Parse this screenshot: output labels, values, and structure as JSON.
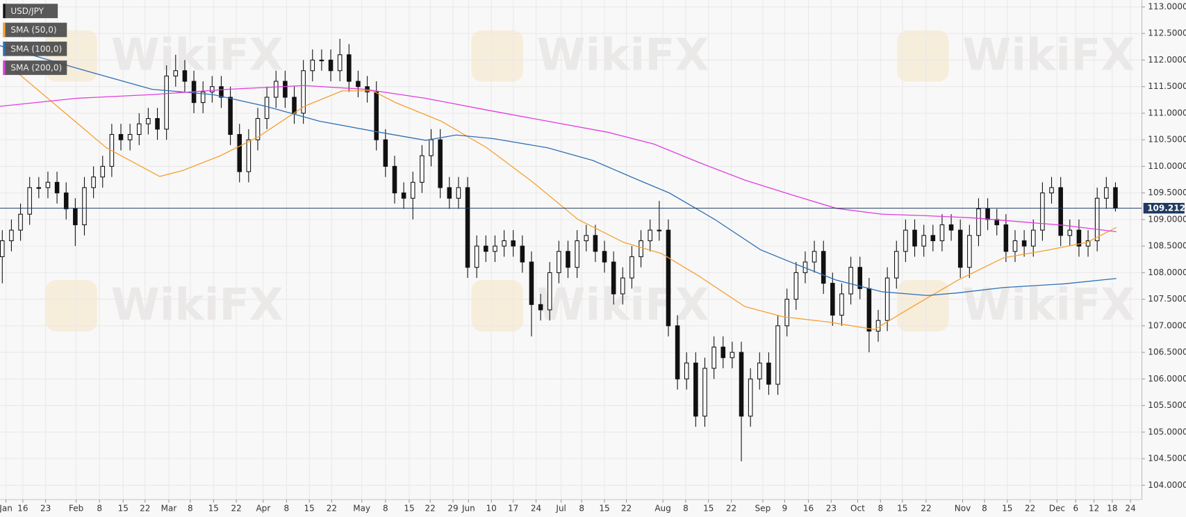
{
  "chart_data": {
    "type": "candlestick",
    "name": "USD/JPY",
    "color": "#111111",
    "watermark": "WikiFX",
    "last_price": 109.2125,
    "last_price_color": "#1f3a5f",
    "grid": true,
    "xlim": [
      0,
      250.3
    ],
    "ylim": [
      103.73,
      113.13
    ],
    "x": [
      0.5,
      2.5,
      4.5,
      6.5,
      8.5,
      10.5,
      12.5,
      14.5,
      16.5,
      18.5,
      20.5,
      22.5,
      24.5,
      26.5,
      28.5,
      30.5,
      32.5,
      34.5,
      36.5,
      38.5,
      40.5,
      42.5,
      44.5,
      46.5,
      48.5,
      50.5,
      52.5,
      54.5,
      56.5,
      58.5,
      60.5,
      62.5,
      64.5,
      66.5,
      68.5,
      70.5,
      72.5,
      74.5,
      76.5,
      78.5,
      80.5,
      82.5,
      84.5,
      86.5,
      88.5,
      90.5,
      92.5,
      94.5,
      96.5,
      98.5,
      100.5,
      102.5,
      104.5,
      106.5,
      108.5,
      110.5,
      112.5,
      114.5,
      116.5,
      118.5,
      120.5,
      122.5,
      124.5,
      126.5,
      128.5,
      130.5,
      132.5,
      134.5,
      136.5,
      138.5,
      140.5,
      142.5,
      144.5,
      146.5,
      148.5,
      150.5,
      152.5,
      154.5,
      156.5,
      158.5,
      160.5,
      162.5,
      164.5,
      166.5,
      168.5,
      170.5,
      172.5,
      174.5,
      176.5,
      178.5,
      180.5,
      182.5,
      184.5,
      186.5,
      188.5,
      190.5,
      192.5,
      194.5,
      196.5,
      198.5,
      200.5,
      202.5,
      204.5,
      206.5,
      208.5,
      210.5,
      212.5,
      214.5,
      216.5,
      218.5,
      220.5,
      222.5,
      224.5,
      226.5,
      228.5,
      230.5,
      232.5,
      234.5,
      236.5,
      238.5,
      240.5,
      242.5,
      244.5
    ],
    "open": [
      108.3,
      108.6,
      108.8,
      109.1,
      109.6,
      109.6,
      109.7,
      109.5,
      109.2,
      108.9,
      109.6,
      109.8,
      110.0,
      110.6,
      110.5,
      110.6,
      110.8,
      110.9,
      110.7,
      111.7,
      111.8,
      111.6,
      111.2,
      111.4,
      111.5,
      111.3,
      110.6,
      109.9,
      110.5,
      110.9,
      111.3,
      111.6,
      111.3,
      111.0,
      111.8,
      112.0,
      112.0,
      111.8,
      112.1,
      111.6,
      111.5,
      111.4,
      110.5,
      110.0,
      109.5,
      109.4,
      109.7,
      110.2,
      110.5,
      109.6,
      109.4,
      109.6,
      108.1,
      108.5,
      108.4,
      108.5,
      108.6,
      108.5,
      108.2,
      107.4,
      107.3,
      108.0,
      108.4,
      108.1,
      108.6,
      108.7,
      108.4,
      108.2,
      107.6,
      107.9,
      108.3,
      108.6,
      108.8,
      108.8,
      107.0,
      106.0,
      106.3,
      105.3,
      106.2,
      106.6,
      106.4,
      106.5,
      105.3,
      106.0,
      106.3,
      105.9,
      107.0,
      107.5,
      108.0,
      108.2,
      108.4,
      107.8,
      107.2,
      107.6,
      108.1,
      107.7,
      106.9,
      107.1,
      107.9,
      108.4,
      108.8,
      108.5,
      108.7,
      108.6,
      108.9,
      108.8,
      108.1,
      108.7,
      109.2,
      109.0,
      108.9,
      108.4,
      108.6,
      108.5,
      108.8,
      109.5,
      109.6,
      108.7,
      108.8,
      108.5,
      108.6,
      109.4,
      109.6
    ],
    "high": [
      108.8,
      109.0,
      109.3,
      109.8,
      109.8,
      109.9,
      109.9,
      109.7,
      109.4,
      109.8,
      110.0,
      110.2,
      110.8,
      110.8,
      110.8,
      111.0,
      111.1,
      111.1,
      111.9,
      112.1,
      112.0,
      111.8,
      111.6,
      111.7,
      111.7,
      111.5,
      110.8,
      110.7,
      111.1,
      111.5,
      111.8,
      111.8,
      111.5,
      112.0,
      112.2,
      112.2,
      112.2,
      112.4,
      112.3,
      111.8,
      111.7,
      111.6,
      110.7,
      110.2,
      109.7,
      109.9,
      110.4,
      110.7,
      110.7,
      109.8,
      109.8,
      109.8,
      108.7,
      108.7,
      108.7,
      108.8,
      108.8,
      108.7,
      108.4,
      107.6,
      108.2,
      108.6,
      108.6,
      108.8,
      108.9,
      108.9,
      108.6,
      108.4,
      108.1,
      108.5,
      108.8,
      109.0,
      109.35,
      109.0,
      107.2,
      106.5,
      106.5,
      106.4,
      106.8,
      106.8,
      106.7,
      106.7,
      106.2,
      106.5,
      106.5,
      107.2,
      107.7,
      108.2,
      108.4,
      108.6,
      108.6,
      108.0,
      107.8,
      108.3,
      108.3,
      107.9,
      107.3,
      108.1,
      108.6,
      109.0,
      109.0,
      108.9,
      108.9,
      109.1,
      109.1,
      109.0,
      108.9,
      109.4,
      109.4,
      109.2,
      109.1,
      108.8,
      108.8,
      109.0,
      109.7,
      109.8,
      109.8,
      109.0,
      109.0,
      108.8,
      109.6,
      109.8,
      109.7
    ],
    "low": [
      107.8,
      108.4,
      108.6,
      108.9,
      109.4,
      109.4,
      109.3,
      109.0,
      108.5,
      108.7,
      109.4,
      109.6,
      109.8,
      110.3,
      110.3,
      110.4,
      110.6,
      110.5,
      110.5,
      111.5,
      111.4,
      111.0,
      111.0,
      111.2,
      111.1,
      110.4,
      109.7,
      109.7,
      110.3,
      110.7,
      111.1,
      111.1,
      110.8,
      110.8,
      111.6,
      111.8,
      111.6,
      111.6,
      111.4,
      111.3,
      111.2,
      110.3,
      109.8,
      109.3,
      109.2,
      109.0,
      109.5,
      110.0,
      109.4,
      109.2,
      109.2,
      107.9,
      107.9,
      108.2,
      108.2,
      108.3,
      108.3,
      108.0,
      106.8,
      107.1,
      107.1,
      107.8,
      107.9,
      107.9,
      108.4,
      108.2,
      108.0,
      107.4,
      107.4,
      107.7,
      108.1,
      108.4,
      108.6,
      106.8,
      105.8,
      105.8,
      105.1,
      105.1,
      106.0,
      106.2,
      106.2,
      104.45,
      105.1,
      105.8,
      105.7,
      105.7,
      106.8,
      107.3,
      107.8,
      108.0,
      107.6,
      107.0,
      107.0,
      107.4,
      107.5,
      106.5,
      106.7,
      106.9,
      107.7,
      108.2,
      108.3,
      108.3,
      108.4,
      108.4,
      108.6,
      107.9,
      107.9,
      108.5,
      108.8,
      108.7,
      108.2,
      108.2,
      108.3,
      108.3,
      108.6,
      109.3,
      108.5,
      108.5,
      108.3,
      108.3,
      108.4,
      109.2,
      109.15
    ],
    "close": [
      108.6,
      108.8,
      109.1,
      109.6,
      109.6,
      109.7,
      109.5,
      109.2,
      108.9,
      109.6,
      109.8,
      110.0,
      110.6,
      110.5,
      110.6,
      110.8,
      110.9,
      110.7,
      111.7,
      111.8,
      111.6,
      111.2,
      111.4,
      111.5,
      111.3,
      110.6,
      109.9,
      110.5,
      110.9,
      111.3,
      111.6,
      111.3,
      111.0,
      111.8,
      112.0,
      112.0,
      111.8,
      112.1,
      111.6,
      111.5,
      111.4,
      110.5,
      110.0,
      109.5,
      109.4,
      109.7,
      110.2,
      110.5,
      109.6,
      109.4,
      109.6,
      108.1,
      108.5,
      108.4,
      108.5,
      108.6,
      108.5,
      108.2,
      107.4,
      107.3,
      108.0,
      108.4,
      108.1,
      108.6,
      108.7,
      108.4,
      108.2,
      107.6,
      107.9,
      108.3,
      108.6,
      108.8,
      108.8,
      107.0,
      106.0,
      106.3,
      105.3,
      106.2,
      106.6,
      106.4,
      106.5,
      105.3,
      106.0,
      106.3,
      105.9,
      107.0,
      107.5,
      108.0,
      108.2,
      108.4,
      107.8,
      107.2,
      107.6,
      108.1,
      107.7,
      106.9,
      107.1,
      107.9,
      108.4,
      108.8,
      108.5,
      108.7,
      108.6,
      108.9,
      108.8,
      108.1,
      108.7,
      109.2,
      109.0,
      108.9,
      108.4,
      108.6,
      108.5,
      108.8,
      109.5,
      109.6,
      108.7,
      108.8,
      108.5,
      108.6,
      109.4,
      109.6,
      109.2125
    ],
    "series": [
      {
        "name": "SMA (50,0)",
        "color": "#f5a030",
        "x": [
          3.3,
          23.3,
          35,
          40,
          48.3,
          56.7,
          66.7,
          75,
          81.7,
          86.7,
          96.7,
          106.7,
          116.7,
          126.7,
          136.7,
          145,
          153.3,
          163.3,
          171.7,
          181.7,
          191.7,
          200,
          210,
          220,
          230,
          238.3,
          244.7
        ],
        "values": [
          111.8,
          110.35,
          109.81,
          109.92,
          110.2,
          110.56,
          111.13,
          111.42,
          111.42,
          111.2,
          110.85,
          110.35,
          109.71,
          109.0,
          108.57,
          108.36,
          107.93,
          107.36,
          107.17,
          107.07,
          106.93,
          107.36,
          107.86,
          108.28,
          108.43,
          108.57,
          108.85
        ]
      },
      {
        "name": "SMA (100,0)",
        "color": "#2f6fb5",
        "x": [
          0,
          16.7,
          33.3,
          46.7,
          58.3,
          70,
          83.3,
          93.3,
          100,
          108.3,
          120,
          130,
          140,
          146.7,
          156.7,
          166.7,
          175,
          183.3,
          193.3,
          203.3,
          210,
          220,
          233.3,
          244.7
        ],
        "values": [
          112.27,
          111.85,
          111.45,
          111.35,
          111.13,
          110.85,
          110.64,
          110.49,
          110.59,
          110.52,
          110.35,
          110.11,
          109.74,
          109.5,
          109.0,
          108.43,
          108.14,
          107.86,
          107.64,
          107.57,
          107.62,
          107.72,
          107.79,
          107.89
        ]
      },
      {
        "name": "SMA (200,0)",
        "color": "#e03ce0",
        "x": [
          0,
          16.7,
          33.3,
          50,
          66.7,
          80,
          93.3,
          106.7,
          120,
          133.3,
          143.3,
          153.3,
          163.3,
          173.3,
          183.3,
          193.3,
          203.3,
          213.3,
          223.3,
          233.3,
          244.7
        ],
        "values": [
          111.13,
          111.28,
          111.35,
          111.45,
          111.52,
          111.45,
          111.28,
          111.06,
          110.85,
          110.64,
          110.42,
          110.07,
          109.74,
          109.47,
          109.21,
          109.1,
          109.07,
          109.03,
          108.96,
          108.89,
          108.77
        ]
      }
    ],
    "xticks": [
      {
        "value": 1.3,
        "label": "Jan"
      },
      {
        "value": 5,
        "label": "16"
      },
      {
        "value": 10,
        "label": "23"
      },
      {
        "value": 16.7,
        "label": "Feb"
      },
      {
        "value": 21.8,
        "label": "8"
      },
      {
        "value": 27,
        "label": "15"
      },
      {
        "value": 31.8,
        "label": "22"
      },
      {
        "value": 37,
        "label": "Mar"
      },
      {
        "value": 41.7,
        "label": "8"
      },
      {
        "value": 46.8,
        "label": "15"
      },
      {
        "value": 51.8,
        "label": "22"
      },
      {
        "value": 57.7,
        "label": "Apr"
      },
      {
        "value": 62.8,
        "label": "8"
      },
      {
        "value": 67.8,
        "label": "15"
      },
      {
        "value": 72.7,
        "label": "22"
      },
      {
        "value": 79.3,
        "label": "May"
      },
      {
        "value": 84.5,
        "label": "8"
      },
      {
        "value": 89.7,
        "label": "15"
      },
      {
        "value": 94.3,
        "label": "22"
      },
      {
        "value": 99.3,
        "label": "29"
      },
      {
        "value": 102.7,
        "label": "Jun"
      },
      {
        "value": 107.7,
        "label": "10"
      },
      {
        "value": 112.5,
        "label": "17"
      },
      {
        "value": 117.5,
        "label": "24"
      },
      {
        "value": 123,
        "label": "Jul"
      },
      {
        "value": 127.5,
        "label": "8"
      },
      {
        "value": 132.5,
        "label": "15"
      },
      {
        "value": 137.3,
        "label": "22"
      },
      {
        "value": 145.3,
        "label": "Aug"
      },
      {
        "value": 150.3,
        "label": "8"
      },
      {
        "value": 155.3,
        "label": "15"
      },
      {
        "value": 160.3,
        "label": "22"
      },
      {
        "value": 167.2,
        "label": "Sep"
      },
      {
        "value": 172,
        "label": "9"
      },
      {
        "value": 177.2,
        "label": "16"
      },
      {
        "value": 182.2,
        "label": "23"
      },
      {
        "value": 188,
        "label": "Oct"
      },
      {
        "value": 193,
        "label": "8"
      },
      {
        "value": 197.8,
        "label": "15"
      },
      {
        "value": 203,
        "label": "22"
      },
      {
        "value": 211,
        "label": "Nov"
      },
      {
        "value": 215.8,
        "label": "8"
      },
      {
        "value": 220.8,
        "label": "15"
      },
      {
        "value": 225.8,
        "label": "22"
      },
      {
        "value": 231.7,
        "label": "Dec"
      },
      {
        "value": 235.8,
        "label": "6"
      },
      {
        "value": 239.8,
        "label": "12"
      },
      {
        "value": 243.8,
        "label": "18"
      },
      {
        "value": 247.8,
        "label": "24"
      }
    ],
    "yticks": [
      {
        "value": 104,
        "label": "104.0000"
      },
      {
        "value": 104.5,
        "label": "104.5000"
      },
      {
        "value": 105,
        "label": "105.0000"
      },
      {
        "value": 105.5,
        "label": "105.5000"
      },
      {
        "value": 106,
        "label": "106.0000"
      },
      {
        "value": 106.5,
        "label": "106.5000"
      },
      {
        "value": 107,
        "label": "107.0000"
      },
      {
        "value": 107.5,
        "label": "107.5000"
      },
      {
        "value": 108,
        "label": "108.0000"
      },
      {
        "value": 108.5,
        "label": "108.5000"
      },
      {
        "value": 109,
        "label": "109.0000"
      },
      {
        "value": 109.5,
        "label": "109.5000"
      },
      {
        "value": 110,
        "label": "110.0000"
      },
      {
        "value": 110.5,
        "label": "110.5000"
      },
      {
        "value": 111,
        "label": "111.0000"
      },
      {
        "value": 111.5,
        "label": "111.5000"
      },
      {
        "value": 112,
        "label": "112.0000"
      },
      {
        "value": 112.5,
        "label": "112.5000"
      },
      {
        "value": 113,
        "label": "113.0000"
      }
    ]
  }
}
